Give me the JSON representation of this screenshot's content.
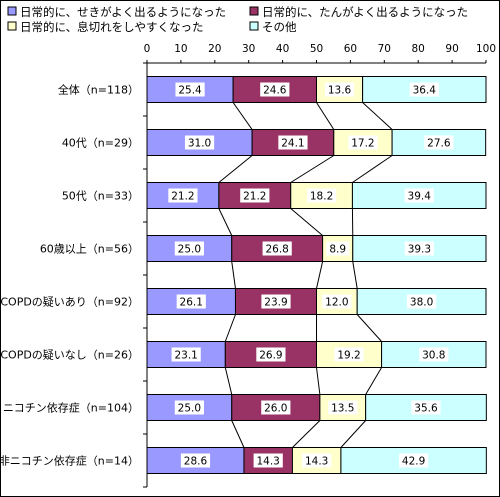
{
  "chart_data": {
    "type": "bar",
    "orientation": "horizontal",
    "stacked": true,
    "title": "",
    "xlabel": "",
    "ylabel": "",
    "xlim": [
      0,
      100
    ],
    "x_ticks": [
      0,
      10,
      20,
      30,
      40,
      50,
      60,
      70,
      80,
      90,
      100
    ],
    "grid": false,
    "legend_position": "top",
    "connector_lines": true,
    "categories": [
      "全体（n=118）",
      "40代（n=29）",
      "50代（n=33）",
      "60歳以上（n=56）",
      "COPDの疑いあり（n=92）",
      "COPDの疑いなし（n=26）",
      "ニコチン依存症（n=104）",
      "非ニコチン依存症（n=14）"
    ],
    "series": [
      {
        "name": "日常的に、せきがよく出るようになった",
        "color": "#9999ff",
        "values": [
          25.4,
          31.0,
          21.2,
          25.0,
          26.1,
          23.1,
          25.0,
          28.6
        ]
      },
      {
        "name": "日常的に、たんがよく出るようになった",
        "color": "#993366",
        "values": [
          24.6,
          24.1,
          21.2,
          26.8,
          23.9,
          26.9,
          26.0,
          14.3
        ]
      },
      {
        "name": "日常的に、息切れをしやすくなった",
        "color": "#ffffcc",
        "values": [
          13.6,
          17.2,
          18.2,
          8.9,
          12.0,
          19.2,
          13.5,
          14.3
        ]
      },
      {
        "name": "その他",
        "color": "#ccffff",
        "values": [
          36.4,
          27.6,
          39.4,
          39.3,
          38.0,
          30.8,
          35.6,
          42.9
        ]
      }
    ]
  }
}
